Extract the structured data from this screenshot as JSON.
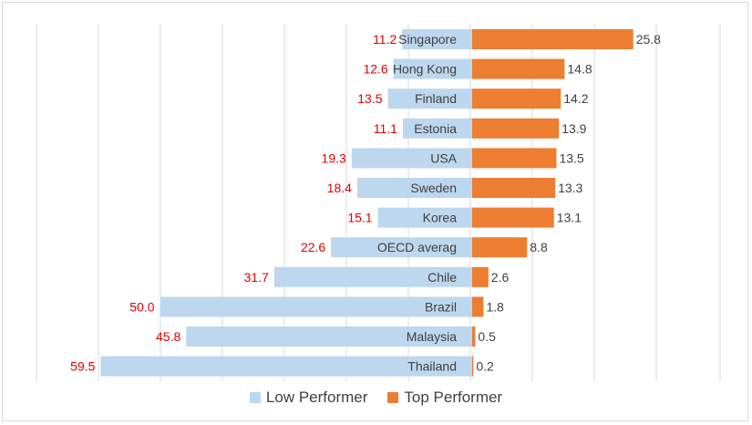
{
  "chart_data": {
    "type": "bar",
    "orientation": "horizontal-diverging",
    "categories": [
      "Singapore",
      "Hong Kong",
      "Finland",
      "Estonia",
      "USA",
      "Sweden",
      "Korea",
      "OECD averag",
      "Chile",
      "Brazil",
      "Malaysia",
      "Thailand"
    ],
    "series": [
      {
        "name": "Low Performer",
        "color": "#bdd7ee",
        "label_color": "#e00000",
        "values": [
          11.2,
          12.6,
          13.5,
          11.1,
          19.3,
          18.4,
          15.1,
          22.6,
          31.7,
          50.0,
          45.8,
          59.5
        ],
        "labels": [
          "11.2",
          "12.6",
          "13.5",
          "11.1",
          "19.3",
          "18.4",
          "15.1",
          "22.6",
          "31.7",
          "50.0",
          "45.8",
          "59.5"
        ]
      },
      {
        "name": "Top Performer",
        "color": "#ed7d31",
        "label_color": "#404040",
        "values": [
          25.8,
          14.8,
          14.2,
          13.9,
          13.5,
          13.3,
          13.1,
          8.8,
          2.6,
          1.8,
          0.5,
          0.2
        ],
        "labels": [
          "25.8",
          "14.8",
          "14.2",
          "13.9",
          "13.5",
          "13.3",
          "13.1",
          "8.8",
          "2.6",
          "1.8",
          "0.5",
          "0.2"
        ]
      }
    ],
    "xlim": [
      -70,
      40
    ],
    "grid": true,
    "legend_position": "bottom"
  }
}
